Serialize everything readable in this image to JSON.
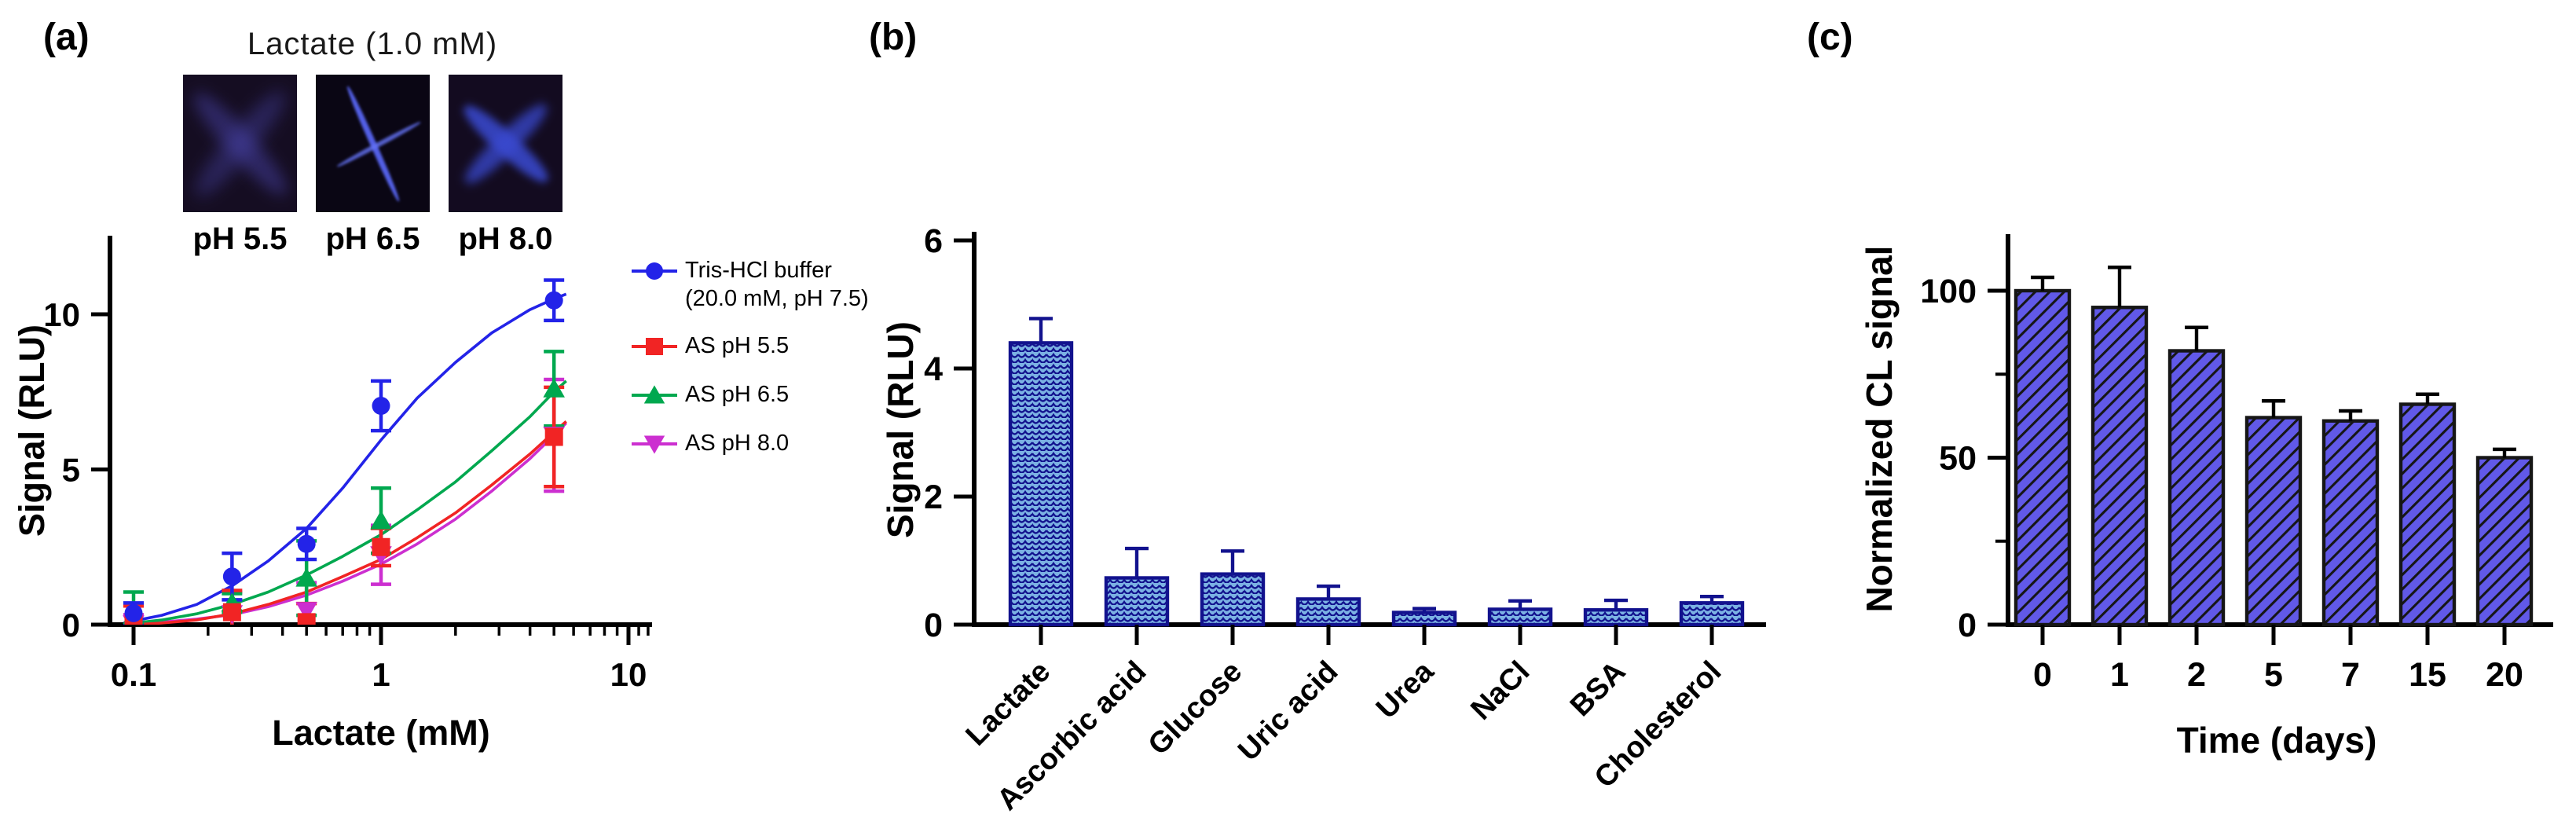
{
  "figure": {
    "panel_a_label": "(a)",
    "panel_b_label": "(b)",
    "panel_c_label": "(c)"
  },
  "panel_a": {
    "inset": {
      "title": "Lactate  (1.0 mM)",
      "images": [
        {
          "label": "pH 5.5",
          "description": "luminescence-image-faint-x"
        },
        {
          "label": "pH 6.5",
          "description": "luminescence-image-thin-x"
        },
        {
          "label": "pH 8.0",
          "description": "luminescence-image-bright-x"
        }
      ]
    },
    "legend": [
      {
        "lines": [
          "Tris-HCl buffer",
          "(20.0 mM, pH 7.5)"
        ],
        "marker": "circle",
        "color": "#2323e8"
      },
      {
        "lines": [
          "AS pH 5.5"
        ],
        "marker": "square",
        "color": "#f12424"
      },
      {
        "lines": [
          "AS pH 6.5"
        ],
        "marker": "triangle-up",
        "color": "#00a84f"
      },
      {
        "lines": [
          "AS pH 8.0"
        ],
        "marker": "triangle-down",
        "color": "#cc2fd0"
      }
    ]
  },
  "chart_data": [
    {
      "id": "panel-a",
      "type": "scatter",
      "x_scale": "log",
      "xlabel": "Lactate (mM)",
      "ylabel": "Signal (RLU)",
      "xlim": [
        0.085,
        12.5
      ],
      "ylim": [
        0,
        12.4
      ],
      "xticks": [
        0.1,
        1,
        10
      ],
      "xtick_labels": [
        "0.1",
        "1",
        "10"
      ],
      "yticks": [
        0,
        5,
        10
      ],
      "grid": false,
      "legend_position": "right",
      "series": [
        {
          "name": "Tris-HCl buffer (20.0 mM, pH 7.5)",
          "color": "#2323e8",
          "marker": "circle",
          "x": [
            0.1,
            0.25,
            0.5,
            1,
            5
          ],
          "y": [
            0.37,
            1.55,
            2.6,
            7.05,
            10.45
          ],
          "err": [
            0.33,
            0.75,
            0.5,
            0.8,
            0.65
          ],
          "fit_curve": {
            "x": [
              0.1,
              0.13,
              0.18,
              0.25,
              0.35,
              0.5,
              0.7,
              1.0,
              1.4,
              2.0,
              2.8,
              4.0,
              5.0,
              5.6
            ],
            "y": [
              0.12,
              0.3,
              0.65,
              1.25,
              2.05,
              3.1,
              4.4,
              5.95,
              7.3,
              8.45,
              9.4,
              10.15,
              10.5,
              10.65
            ]
          }
        },
        {
          "name": "AS pH 5.5",
          "color": "#f12424",
          "marker": "square",
          "x": [
            0.1,
            0.25,
            0.5,
            1,
            5
          ],
          "y": [
            0.05,
            0.4,
            0.08,
            2.5,
            6.05
          ],
          "err": [
            0.55,
            0.7,
            0.6,
            0.6,
            1.6
          ],
          "fit_curve": {
            "x": [
              0.1,
              0.13,
              0.18,
              0.25,
              0.35,
              0.5,
              0.7,
              1.0,
              1.4,
              2.0,
              2.8,
              4.0,
              5.0,
              5.6
            ],
            "y": [
              0.0,
              0.05,
              0.15,
              0.35,
              0.65,
              1.05,
              1.55,
              2.1,
              2.8,
              3.6,
              4.5,
              5.5,
              6.2,
              6.55
            ]
          }
        },
        {
          "name": "AS pH 6.5",
          "color": "#00a84f",
          "marker": "triangle-up",
          "x": [
            0.1,
            0.25,
            0.5,
            1,
            5
          ],
          "y": [
            0.3,
            0.7,
            1.5,
            3.35,
            7.6
          ],
          "err": [
            0.75,
            0.3,
            1.2,
            1.05,
            1.2
          ],
          "fit_curve": {
            "x": [
              0.1,
              0.13,
              0.18,
              0.25,
              0.35,
              0.5,
              0.7,
              1.0,
              1.4,
              2.0,
              2.8,
              4.0,
              5.0,
              5.6
            ],
            "y": [
              0.05,
              0.15,
              0.35,
              0.65,
              1.05,
              1.6,
              2.2,
              2.9,
              3.7,
              4.6,
              5.6,
              6.7,
              7.5,
              7.85
            ]
          }
        },
        {
          "name": "AS pH 8.0",
          "color": "#cc2fd0",
          "marker": "triangle-down",
          "x": [
            0.1,
            0.25,
            0.5,
            1,
            5
          ],
          "y": [
            0.02,
            0.35,
            0.45,
            2.25,
            6.1
          ],
          "err": [
            0.3,
            0.7,
            0.9,
            0.95,
            1.8
          ],
          "fit_curve": {
            "x": [
              0.1,
              0.13,
              0.18,
              0.25,
              0.35,
              0.5,
              0.7,
              1.0,
              1.4,
              2.0,
              2.8,
              4.0,
              5.0,
              5.6
            ],
            "y": [
              0.02,
              0.08,
              0.18,
              0.32,
              0.58,
              0.95,
              1.4,
              1.95,
              2.6,
              3.4,
              4.3,
              5.35,
              6.1,
              6.5
            ]
          }
        }
      ]
    },
    {
      "id": "panel-b",
      "type": "bar",
      "xlabel": "",
      "ylabel": "Signal (RLU)",
      "ylim": [
        0,
        6
      ],
      "yticks": [
        0,
        2,
        4,
        6
      ],
      "grid": false,
      "bar_style": {
        "fill": "#7cb2e4",
        "pattern": "scales",
        "stroke": "#12128e"
      },
      "categories": [
        "Lactate",
        "Ascorbic acid",
        "Glucose",
        "Uric acid",
        "Urea",
        "NaCl",
        "BSA",
        "Cholesterol"
      ],
      "values": [
        4.4,
        0.73,
        0.79,
        0.4,
        0.19,
        0.24,
        0.23,
        0.34
      ],
      "errors": [
        0.38,
        0.46,
        0.36,
        0.2,
        0.06,
        0.13,
        0.15,
        0.1
      ]
    },
    {
      "id": "panel-c",
      "type": "bar",
      "xlabel": "Time (days)",
      "ylabel": "Normalized CL signal",
      "ylim": [
        0,
        117
      ],
      "yticks": [
        0,
        50,
        100
      ],
      "yticks_minor": [
        25,
        75
      ],
      "grid": false,
      "bar_style": {
        "fill": "#6159e8",
        "pattern": "hatch",
        "stroke": "#161616"
      },
      "categories": [
        "0",
        "1",
        "2",
        "5",
        "7",
        "15",
        "20"
      ],
      "values": [
        100,
        95,
        82,
        62,
        61,
        66,
        50
      ],
      "errors": [
        4,
        12,
        7,
        5,
        3,
        3,
        2.5
      ]
    }
  ]
}
